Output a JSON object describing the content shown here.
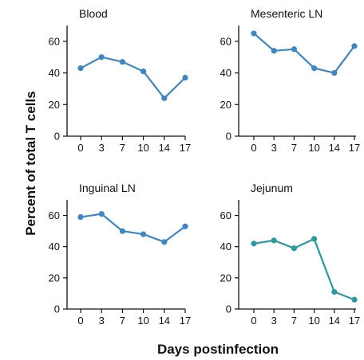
{
  "figure": {
    "ylabel": "Percent of total T cells",
    "xlabel": "Days postinfection"
  },
  "chart_data": [
    {
      "type": "line",
      "title": "Blood",
      "x": [
        0,
        3,
        7,
        10,
        14,
        17
      ],
      "xticks": [
        "0",
        "3",
        "7",
        "10",
        "14",
        "17"
      ],
      "yticks": [
        "0",
        "20",
        "40",
        "60"
      ],
      "ylim": [
        0,
        70
      ],
      "color": "#3f86c4",
      "series": [
        {
          "values": [
            43,
            50,
            47,
            41,
            24,
            37
          ]
        }
      ]
    },
    {
      "type": "line",
      "title": "Mesenteric LN",
      "x": [
        0,
        3,
        7,
        10,
        14,
        17
      ],
      "xticks": [
        "0",
        "3",
        "7",
        "10",
        "14",
        "17"
      ],
      "yticks": [
        "0",
        "20",
        "40",
        "60"
      ],
      "ylim": [
        0,
        70
      ],
      "color": "#3f86c4",
      "series": [
        {
          "values": [
            65,
            54,
            55,
            43,
            40,
            57
          ]
        }
      ]
    },
    {
      "type": "line",
      "title": "Inguinal LN",
      "x": [
        0,
        3,
        7,
        10,
        14,
        17
      ],
      "xticks": [
        "0",
        "3",
        "7",
        "10",
        "14",
        "17"
      ],
      "yticks": [
        "0",
        "20",
        "40",
        "60"
      ],
      "ylim": [
        0,
        70
      ],
      "color": "#3f86c4",
      "series": [
        {
          "values": [
            59,
            61,
            50,
            48,
            43,
            53
          ]
        }
      ]
    },
    {
      "type": "line",
      "title": "Jejunum",
      "x": [
        0,
        3,
        7,
        10,
        14,
        17
      ],
      "xticks": [
        "0",
        "3",
        "7",
        "10",
        "14",
        "17"
      ],
      "yticks": [
        "0",
        "20",
        "40",
        "60"
      ],
      "ylim": [
        0,
        70
      ],
      "color": "#2a9a9c",
      "series": [
        {
          "values": [
            42,
            44,
            39,
            45,
            11,
            6
          ]
        }
      ]
    }
  ]
}
